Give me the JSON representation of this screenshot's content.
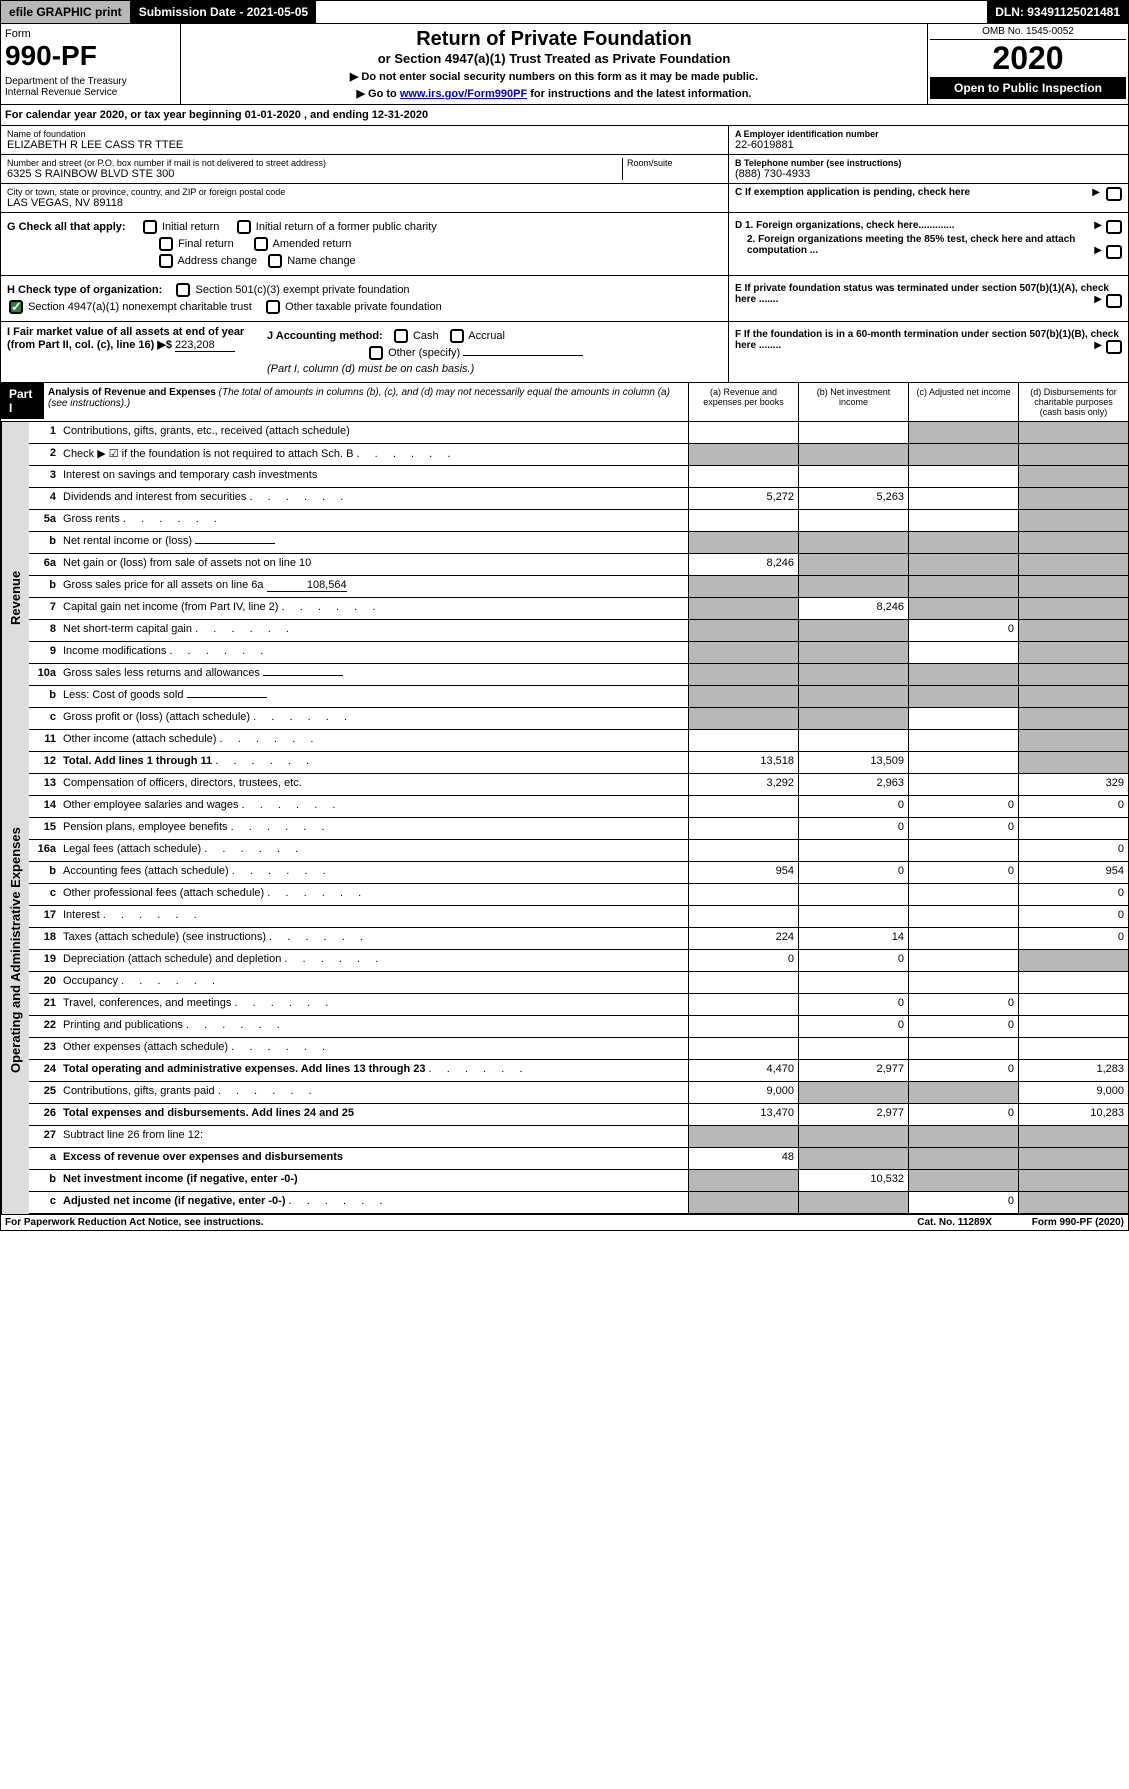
{
  "topbar": {
    "efile": "efile GRAPHIC print",
    "submission": "Submission Date - 2021-05-05",
    "dln": "DLN: 93491125021481"
  },
  "header": {
    "form_label": "Form",
    "form_num": "990-PF",
    "dept": "Department of the Treasury\nInternal Revenue Service",
    "title": "Return of Private Foundation",
    "subtitle": "or Section 4947(a)(1) Trust Treated as Private Foundation",
    "instr1": "▶ Do not enter social security numbers on this form as it may be made public.",
    "instr2_pre": "▶ Go to ",
    "instr2_link": "www.irs.gov/Form990PF",
    "instr2_post": " for instructions and the latest information.",
    "omb": "OMB No. 1545-0052",
    "year": "2020",
    "open": "Open to Public Inspection"
  },
  "calyear": "For calendar year 2020, or tax year beginning 01-01-2020                              , and ending 12-31-2020",
  "info": {
    "name_label": "Name of foundation",
    "name": "ELIZABETH R LEE CASS TR TTEE",
    "addr_label": "Number and street (or P.O. box number if mail is not delivered to street address)",
    "addr": "6325 S RAINBOW BLVD STE 300",
    "room_label": "Room/suite",
    "city_label": "City or town, state or province, country, and ZIP or foreign postal code",
    "city": "LAS VEGAS, NV  89118",
    "ein_label": "A Employer identification number",
    "ein": "22-6019881",
    "tel_label": "B Telephone number (see instructions)",
    "tel": "(888) 730-4933",
    "c_label": "C If exemption application is pending, check here"
  },
  "checks": {
    "g_label": "G Check all that apply:",
    "g1": "Initial return",
    "g2": "Initial return of a former public charity",
    "g3": "Final return",
    "g4": "Amended return",
    "g5": "Address change",
    "g6": "Name change",
    "h_label": "H Check type of organization:",
    "h1": "Section 501(c)(3) exempt private foundation",
    "h2": "Section 4947(a)(1) nonexempt charitable trust",
    "h3": "Other taxable private foundation",
    "i_label": "I Fair market value of all assets at end of year (from Part II, col. (c), line 16) ▶$",
    "i_value": "223,208",
    "j_label": "J Accounting method:",
    "j1": "Cash",
    "j2": "Accrual",
    "j3": "Other (specify)",
    "j_note": "(Part I, column (d) must be on cash basis.)",
    "d1": "D 1. Foreign organizations, check here.............",
    "d2": "2. Foreign organizations meeting the 85% test, check here and attach computation ...",
    "e": "E  If private foundation status was terminated under section 507(b)(1)(A), check here .......",
    "f": "F  If the foundation is in a 60-month termination under section 507(b)(1)(B), check here ........"
  },
  "part1": {
    "label": "Part I",
    "title": "Analysis of Revenue and Expenses",
    "note": "(The total of amounts in columns (b), (c), and (d) may not necessarily equal the amounts in column (a) (see instructions).)",
    "col_a": "(a)    Revenue and expenses per books",
    "col_b": "(b)   Net investment income",
    "col_c": "(c)   Adjusted net income",
    "col_d": "(d)   Disbursements for charitable purposes (cash basis only)"
  },
  "sections": {
    "revenue": "Revenue",
    "expenses": "Operating and Administrative Expenses"
  },
  "rows": [
    {
      "n": "1",
      "d": "Contributions, gifts, grants, etc., received (attach schedule)",
      "a": "",
      "b": "",
      "c": "s",
      "ds": "s"
    },
    {
      "n": "2",
      "d": "Check ▶ ☑ if the foundation is not required to attach Sch. B",
      "a": "s",
      "b": "s",
      "c": "s",
      "ds": "s",
      "dots": true
    },
    {
      "n": "3",
      "d": "Interest on savings and temporary cash investments",
      "a": "",
      "b": "",
      "c": "",
      "ds": "s"
    },
    {
      "n": "4",
      "d": "Dividends and interest from securities",
      "a": "5,272",
      "b": "5,263",
      "c": "",
      "ds": "s",
      "dots": true
    },
    {
      "n": "5a",
      "d": "Gross rents",
      "a": "",
      "b": "",
      "c": "",
      "ds": "s",
      "dots": true
    },
    {
      "n": "b",
      "d": "Net rental income or (loss)",
      "a": "s",
      "b": "s",
      "c": "s",
      "ds": "s",
      "inline": true
    },
    {
      "n": "6a",
      "d": "Net gain or (loss) from sale of assets not on line 10",
      "a": "8,246",
      "b": "s",
      "c": "s",
      "ds": "s"
    },
    {
      "n": "b",
      "d": "Gross sales price for all assets on line 6a",
      "a": "s",
      "b": "s",
      "c": "s",
      "ds": "s",
      "inline": true,
      "inlineval": "108,564"
    },
    {
      "n": "7",
      "d": "Capital gain net income (from Part IV, line 2)",
      "a": "s",
      "b": "8,246",
      "c": "s",
      "ds": "s",
      "dots": true
    },
    {
      "n": "8",
      "d": "Net short-term capital gain",
      "a": "s",
      "b": "s",
      "c": "0",
      "ds": "s",
      "dots": true
    },
    {
      "n": "9",
      "d": "Income modifications",
      "a": "s",
      "b": "s",
      "c": "",
      "ds": "s",
      "dots": true
    },
    {
      "n": "10a",
      "d": "Gross sales less returns and allowances",
      "a": "s",
      "b": "s",
      "c": "s",
      "ds": "s",
      "inline": true
    },
    {
      "n": "b",
      "d": "Less: Cost of goods sold",
      "a": "s",
      "b": "s",
      "c": "s",
      "ds": "s",
      "inline": true,
      "dots": true
    },
    {
      "n": "c",
      "d": "Gross profit or (loss) (attach schedule)",
      "a": "s",
      "b": "s",
      "c": "",
      "ds": "s",
      "dots": true
    },
    {
      "n": "11",
      "d": "Other income (attach schedule)",
      "a": "",
      "b": "",
      "c": "",
      "ds": "s",
      "dots": true
    },
    {
      "n": "12",
      "d": "Total. Add lines 1 through 11",
      "a": "13,518",
      "b": "13,509",
      "c": "",
      "ds": "s",
      "bold": true,
      "dots": true
    }
  ],
  "exprows": [
    {
      "n": "13",
      "d": "Compensation of officers, directors, trustees, etc.",
      "a": "3,292",
      "b": "2,963",
      "c": "",
      "ds": "329"
    },
    {
      "n": "14",
      "d": "Other employee salaries and wages",
      "a": "",
      "b": "0",
      "c": "0",
      "ds": "0",
      "dots": true
    },
    {
      "n": "15",
      "d": "Pension plans, employee benefits",
      "a": "",
      "b": "0",
      "c": "0",
      "ds": "",
      "dots": true
    },
    {
      "n": "16a",
      "d": "Legal fees (attach schedule)",
      "a": "",
      "b": "",
      "c": "",
      "ds": "0",
      "dots": true
    },
    {
      "n": "b",
      "d": "Accounting fees (attach schedule)",
      "a": "954",
      "b": "0",
      "c": "0",
      "ds": "954",
      "dots": true
    },
    {
      "n": "c",
      "d": "Other professional fees (attach schedule)",
      "a": "",
      "b": "",
      "c": "",
      "ds": "0",
      "dots": true
    },
    {
      "n": "17",
      "d": "Interest",
      "a": "",
      "b": "",
      "c": "",
      "ds": "0",
      "dots": true
    },
    {
      "n": "18",
      "d": "Taxes (attach schedule) (see instructions)",
      "a": "224",
      "b": "14",
      "c": "",
      "ds": "0",
      "dots": true
    },
    {
      "n": "19",
      "d": "Depreciation (attach schedule) and depletion",
      "a": "0",
      "b": "0",
      "c": "",
      "ds": "s",
      "dots": true
    },
    {
      "n": "20",
      "d": "Occupancy",
      "a": "",
      "b": "",
      "c": "",
      "ds": "",
      "dots": true
    },
    {
      "n": "21",
      "d": "Travel, conferences, and meetings",
      "a": "",
      "b": "0",
      "c": "0",
      "ds": "",
      "dots": true
    },
    {
      "n": "22",
      "d": "Printing and publications",
      "a": "",
      "b": "0",
      "c": "0",
      "ds": "",
      "dots": true
    },
    {
      "n": "23",
      "d": "Other expenses (attach schedule)",
      "a": "",
      "b": "",
      "c": "",
      "ds": "",
      "dots": true
    },
    {
      "n": "24",
      "d": "Total operating and administrative expenses. Add lines 13 through 23",
      "a": "4,470",
      "b": "2,977",
      "c": "0",
      "ds": "1,283",
      "bold": true,
      "dots": true
    },
    {
      "n": "25",
      "d": "Contributions, gifts, grants paid",
      "a": "9,000",
      "b": "s",
      "c": "s",
      "ds": "9,000",
      "dots": true
    },
    {
      "n": "26",
      "d": "Total expenses and disbursements. Add lines 24 and 25",
      "a": "13,470",
      "b": "2,977",
      "c": "0",
      "ds": "10,283",
      "bold": true
    }
  ],
  "row27": [
    {
      "n": "27",
      "d": "Subtract line 26 from line 12:",
      "a": "s",
      "b": "s",
      "c": "s",
      "ds": "s"
    },
    {
      "n": "a",
      "d": "Excess of revenue over expenses and disbursements",
      "a": "48",
      "b": "s",
      "c": "s",
      "ds": "s",
      "bold": true
    },
    {
      "n": "b",
      "d": "Net investment income (if negative, enter -0-)",
      "a": "s",
      "b": "10,532",
      "c": "s",
      "ds": "s",
      "bold": true
    },
    {
      "n": "c",
      "d": "Adjusted net income (if negative, enter -0-)",
      "a": "s",
      "b": "s",
      "c": "0",
      "ds": "s",
      "bold": true,
      "dots": true
    }
  ],
  "footer": {
    "left": "For Paperwork Reduction Act Notice, see instructions.",
    "mid": "Cat. No. 11289X",
    "right": "Form 990-PF (2020)"
  }
}
